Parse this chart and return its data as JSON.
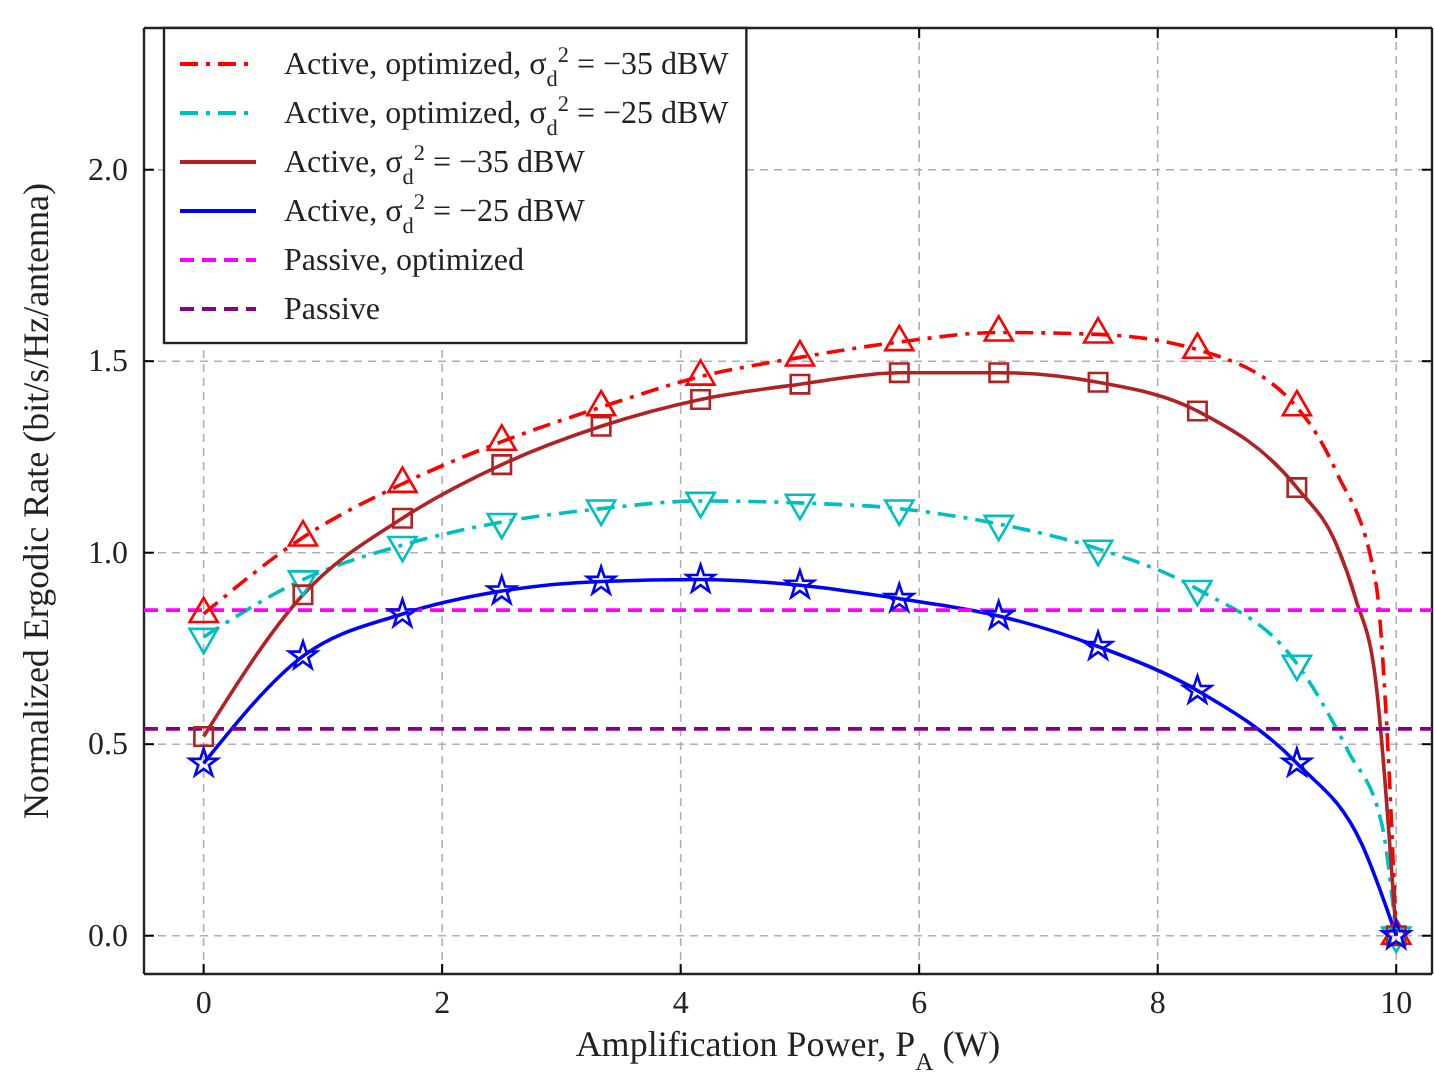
{
  "chart_data": {
    "type": "line",
    "xlabel": "Amplification Power, P$_{A}$ (W)",
    "ylabel": "Normalized Ergodic Rate (bit/s/Hz/antenna)",
    "xlim": [
      -0.5,
      10.3
    ],
    "ylim": [
      -0.1,
      2.37
    ],
    "xticks": [
      0,
      2,
      4,
      6,
      8,
      10
    ],
    "yticks": [
      {
        "value": 0,
        "label": "0.0"
      },
      0.5,
      {
        "value": 1,
        "label": "1.0"
      },
      1.5,
      {
        "value": 2,
        "label": "2.0"
      }
    ],
    "grid": true,
    "legend": "top left",
    "series": [
      {
        "name": "Active, optimized, σ$_{d}$$^{2}$ = −35 dBW",
        "color": "#ff0000",
        "line_style": "dashdot",
        "marker": "none",
        "x": [
          0,
          0.833,
          1.667,
          2.5,
          3.333,
          4.167,
          5,
          5.833,
          6.667,
          7.5,
          8.333,
          9.167,
          9.5,
          9.83,
          9.92,
          10
        ],
        "values": [
          0.84,
          1.04,
          1.18,
          1.29,
          1.38,
          1.46,
          1.51,
          1.55,
          1.575,
          1.57,
          1.53,
          1.38,
          1.21,
          0.92,
          0.55,
          0
        ]
      },
      {
        "name": "Active, optimized, σ$_{d}$$^{2}$ = −25 dBW",
        "color": "#00bfbf",
        "line_style": "dashdot",
        "marker": "none",
        "x": [
          0,
          0.833,
          1.667,
          2.5,
          3.333,
          4.167,
          5,
          5.833,
          6.667,
          7.5,
          8.333,
          9.167,
          9.6,
          9.88,
          10
        ],
        "values": [
          0.78,
          0.93,
          1.02,
          1.08,
          1.115,
          1.135,
          1.13,
          1.115,
          1.075,
          1.01,
          0.905,
          0.71,
          0.48,
          0.29,
          0
        ]
      },
      {
        "name": "Active, σ$_{d}$$^{2}$ = −35 dBW",
        "color": "#b22222",
        "line_style": "solid",
        "marker": "none",
        "x": [
          0,
          0.833,
          1.667,
          2.5,
          3.333,
          4.167,
          5,
          5.833,
          6.667,
          7.5,
          8.333,
          9.167,
          9.5,
          9.66,
          9.83,
          10
        ],
        "values": [
          0.52,
          0.89,
          1.09,
          1.23,
          1.33,
          1.4,
          1.44,
          1.47,
          1.47,
          1.445,
          1.37,
          1.17,
          1.02,
          0.88,
          0.66,
          0
        ]
      },
      {
        "name": "Active, σ$_{d}$$^{2}$ = −25 dBW",
        "color": "#0000ff",
        "line_style": "solid",
        "marker": "none",
        "x": [
          0,
          0.833,
          1.667,
          2.5,
          3.333,
          4.167,
          5,
          5.833,
          6.667,
          7.5,
          8.333,
          9.167,
          9.71,
          10
        ],
        "values": [
          0.45,
          0.73,
          0.84,
          0.9,
          0.925,
          0.93,
          0.915,
          0.88,
          0.835,
          0.755,
          0.64,
          0.45,
          0.24,
          0
        ]
      },
      {
        "name": "Passive, optimized",
        "color": "#ff00ff",
        "line_style": "dashed",
        "marker": "none",
        "x": [
          -0.5,
          10.3
        ],
        "values": [
          0.85,
          0.85
        ]
      },
      {
        "name": "Passive",
        "color": "#8b008b",
        "line_style": "dashed",
        "marker": "none",
        "x": [
          -0.5,
          10.3
        ],
        "values": [
          0.54,
          0.54
        ]
      },
      {
        "type": "scatter",
        "color": "#ff0000",
        "marker": "triangle",
        "x": [
          0,
          0.833,
          1.667,
          2.5,
          3.333,
          4.167,
          5,
          5.833,
          6.667,
          7.5,
          8.333,
          9.167,
          10
        ],
        "values": [
          0.84,
          1.04,
          1.18,
          1.29,
          1.38,
          1.46,
          1.51,
          1.55,
          1.575,
          1.57,
          1.53,
          1.38,
          0
        ]
      },
      {
        "type": "scatter",
        "color": "#00bfbf",
        "marker": "triangle-down",
        "x": [
          0,
          0.833,
          1.667,
          2.5,
          3.333,
          4.167,
          5,
          5.833,
          6.667,
          7.5,
          8.333,
          9.167,
          10
        ],
        "values": [
          0.78,
          0.93,
          1.02,
          1.08,
          1.115,
          1.135,
          1.13,
          1.115,
          1.075,
          1.01,
          0.905,
          0.71,
          0
        ]
      },
      {
        "type": "scatter",
        "color": "#b22222",
        "marker": "square",
        "x": [
          0,
          0.833,
          1.667,
          2.5,
          3.333,
          4.167,
          5,
          5.833,
          6.667,
          7.5,
          8.333,
          9.167,
          10
        ],
        "values": [
          0.52,
          0.89,
          1.09,
          1.23,
          1.33,
          1.4,
          1.44,
          1.47,
          1.47,
          1.445,
          1.37,
          1.17,
          0
        ]
      },
      {
        "type": "scatter",
        "color": "#0000ff",
        "marker": "star",
        "x": [
          0,
          0.833,
          1.667,
          2.5,
          3.333,
          4.167,
          5,
          5.833,
          6.667,
          7.5,
          8.333,
          9.167,
          10
        ],
        "values": [
          0.45,
          0.73,
          0.84,
          0.9,
          0.925,
          0.93,
          0.915,
          0.88,
          0.835,
          0.755,
          0.64,
          0.45,
          0
        ]
      }
    ]
  }
}
